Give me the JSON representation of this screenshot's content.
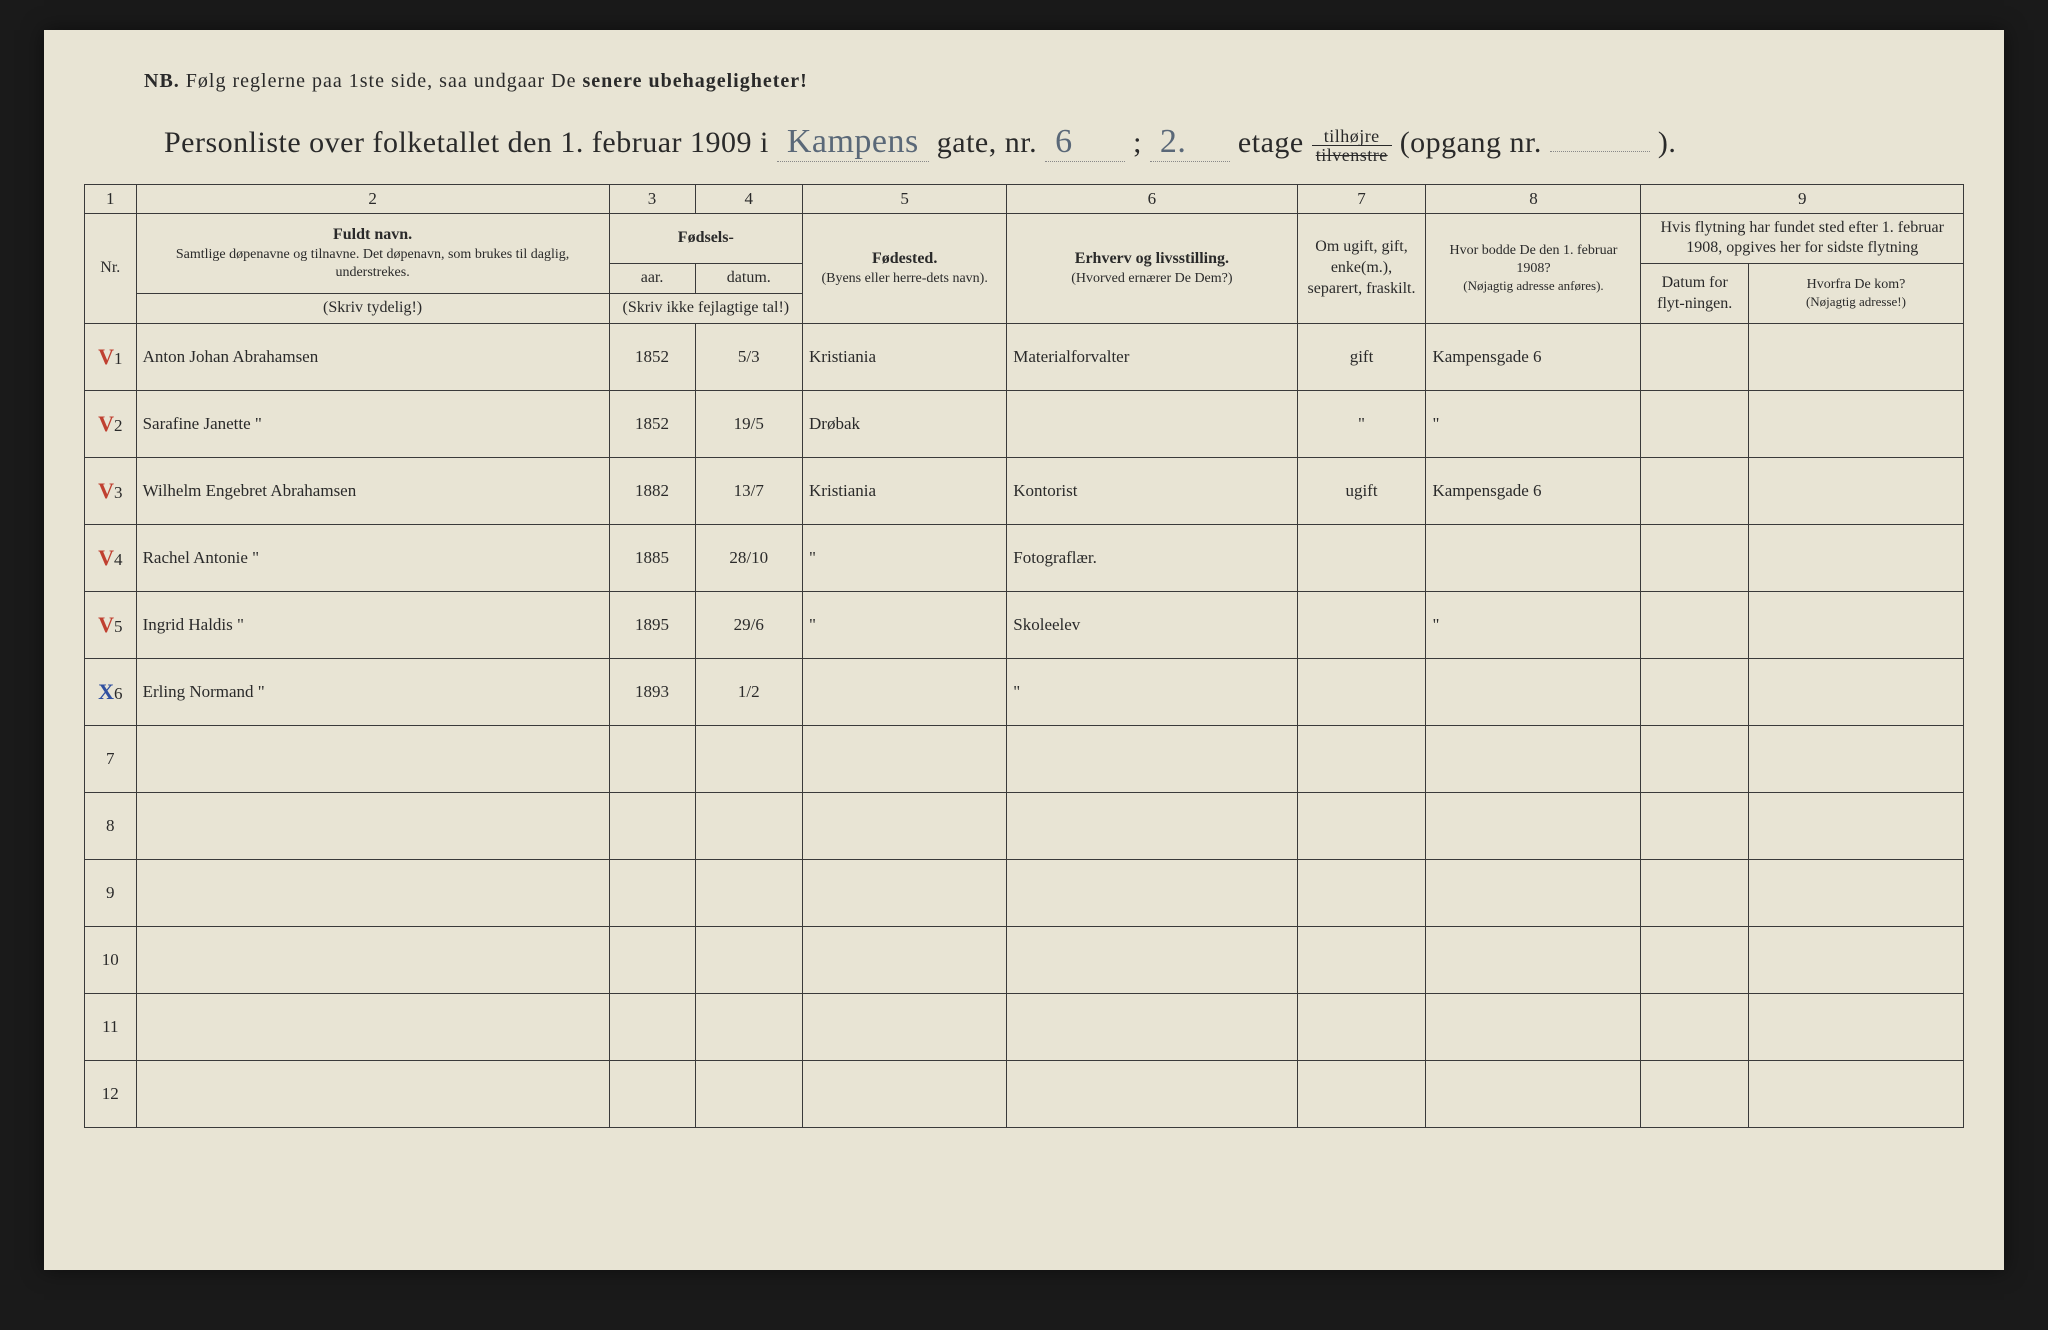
{
  "nb": {
    "prefix": "NB.",
    "text1": "Følg reglerne paa 1ste side, saa undgaar De",
    "text2": "senere ubehageligheter!"
  },
  "title": {
    "t1": "Personliste over folketallet den 1. februar 1909 i",
    "street": "Kampens",
    "t2": "gate, nr.",
    "nr": "6",
    "semi": ";",
    "floor": "2.",
    "t3": "etage",
    "frac_top": "tilhøjre",
    "frac_bot": "tilvenstre",
    "t4": "(opgang nr.",
    "opgang": "",
    "t5": ")."
  },
  "colnums": [
    "1",
    "2",
    "3",
    "4",
    "5",
    "6",
    "7",
    "8",
    "9"
  ],
  "headers": {
    "fuldt": "Fuldt navn.",
    "fuldt_sub": "Samtlige døpenavne og tilnavne. Det døpenavn, som brukes til daglig, understrekes.",
    "fodsels": "Fødsels-",
    "aar": "aar.",
    "datum": "datum.",
    "skriv_ikke": "(Skriv ikke fejlagtige tal!)",
    "fodested": "Fødested.",
    "fodested_sub": "(Byens eller herre-dets navn).",
    "erhverv": "Erhverv og livsstilling.",
    "erhverv_sub": "(Hvorved ernærer De Dem?)",
    "ugift": "Om ugift, gift, enke(m.), separert, fraskilt.",
    "hvor1908": "Hvor bodde De den 1. februar 1908?",
    "hvor1908_sub": "(Nøjagtig adresse anføres).",
    "flytning": "Hvis flytning har fundet sted efter 1. februar 1908, opgives her for sidste flytning",
    "datum_flyt": "Datum for flyt-ningen.",
    "hvorfra": "Hvorfra De kom?",
    "hvorfra_sub": "(Nøjagtig adresse!)",
    "nr": "Nr.",
    "skriv_tyd": "(Skriv tydelig!)"
  },
  "rows": [
    {
      "n": "1",
      "mark": "V",
      "name": "Anton Johan Abrahamsen",
      "yr": "1852",
      "dt": "5/3",
      "bp": "Kristiania",
      "occ": "Materialforvalter",
      "ms": "gift",
      "pa": "Kampensgade 6",
      "md": "",
      "fr": ""
    },
    {
      "n": "2",
      "mark": "V",
      "name": "Sarafine Janette      \"",
      "yr": "1852",
      "dt": "19/5",
      "bp": "Drøbak",
      "occ": "",
      "ms": "\"",
      "pa": "\"",
      "md": "",
      "fr": ""
    },
    {
      "n": "3",
      "mark": "V",
      "name": "Wilhelm Engebret Abrahamsen",
      "yr": "1882",
      "dt": "13/7",
      "bp": "Kristiania",
      "occ": "Kontorist",
      "ms": "ugift",
      "pa": "Kampensgade 6",
      "md": "",
      "fr": ""
    },
    {
      "n": "4",
      "mark": "V",
      "name": "Rachel Antonie     \"",
      "yr": "1885",
      "dt": "28/10",
      "bp": "\"",
      "occ": "Fotograflær.",
      "ms": "",
      "pa": "",
      "md": "",
      "fr": ""
    },
    {
      "n": "5",
      "mark": "V",
      "name": "Ingrid Haldis     \"",
      "yr": "1895",
      "dt": "29/6",
      "bp": "\"",
      "occ": "Skoleelev",
      "ms": "",
      "pa": "\"",
      "md": "",
      "fr": ""
    },
    {
      "n": "6",
      "mark": "X",
      "name": "Erling Normand    \"",
      "yr": "1893",
      "dt": "1/2",
      "bp": "",
      "occ": "\"",
      "ms": "",
      "pa": "",
      "md": "",
      "fr": ""
    },
    {
      "n": "7",
      "mark": "",
      "name": "",
      "yr": "",
      "dt": "",
      "bp": "",
      "occ": "",
      "ms": "",
      "pa": "",
      "md": "",
      "fr": ""
    },
    {
      "n": "8",
      "mark": "",
      "name": "",
      "yr": "",
      "dt": "",
      "bp": "",
      "occ": "",
      "ms": "",
      "pa": "",
      "md": "",
      "fr": ""
    },
    {
      "n": "9",
      "mark": "",
      "name": "",
      "yr": "",
      "dt": "",
      "bp": "",
      "occ": "",
      "ms": "",
      "pa": "",
      "md": "",
      "fr": ""
    },
    {
      "n": "10",
      "mark": "",
      "name": "",
      "yr": "",
      "dt": "",
      "bp": "",
      "occ": "",
      "ms": "",
      "pa": "",
      "md": "",
      "fr": ""
    },
    {
      "n": "11",
      "mark": "",
      "name": "",
      "yr": "",
      "dt": "",
      "bp": "",
      "occ": "",
      "ms": "",
      "pa": "",
      "md": "",
      "fr": ""
    },
    {
      "n": "12",
      "mark": "",
      "name": "",
      "yr": "",
      "dt": "",
      "bp": "",
      "occ": "",
      "ms": "",
      "pa": "",
      "md": "",
      "fr": ""
    }
  ],
  "colors": {
    "paper": "#e8e4d4",
    "ink": "#2a2a2a",
    "handwriting": "#4a5868",
    "red_mark": "#c04030",
    "blue_mark": "#3050a0",
    "border": "#3a3a3a"
  }
}
